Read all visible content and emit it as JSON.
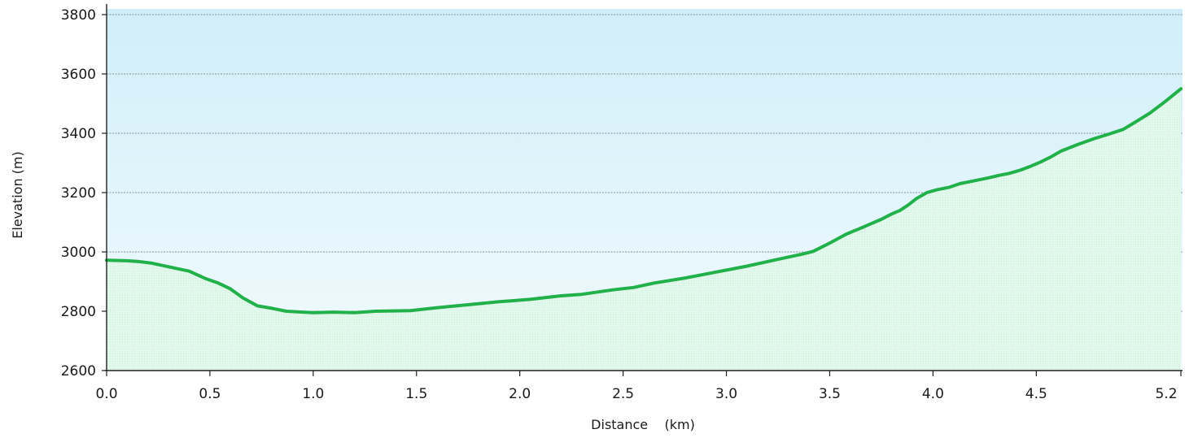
{
  "chart_data": {
    "type": "area",
    "xlabel": "Distance    (km)",
    "ylabel": "Elevation (m)",
    "xlim": [
      0,
      5.2
    ],
    "ylim": [
      2600,
      3800
    ],
    "x_ticks": [
      0.0,
      0.5,
      1.0,
      1.5,
      2.0,
      2.5,
      3.0,
      3.5,
      4.0,
      4.5,
      5.2
    ],
    "x_tick_labels": [
      "0.0",
      "0.5",
      "1.0",
      "1.5",
      "2.0",
      "2.5",
      "3.0",
      "3.5",
      "4.0",
      "4.5",
      "5.2"
    ],
    "y_ticks": [
      2600,
      2800,
      3000,
      3200,
      3400,
      3600,
      3800
    ],
    "y_tick_labels": [
      "2600",
      "2800",
      "3000",
      "3200",
      "3400",
      "3600",
      "3800"
    ],
    "grid": "horizontal dotted",
    "colors": {
      "line": "#22b04b",
      "fill": "#d8f5e4",
      "sky_top": "#d0eef9",
      "sky_bottom": "#f2fbfd"
    },
    "series": [
      {
        "x": [
          0.0,
          0.1,
          0.15,
          0.22,
          0.3,
          0.4,
          0.48,
          0.54,
          0.6,
          0.66,
          0.73,
          0.8,
          0.87,
          0.95,
          1.0,
          1.1,
          1.2,
          1.3,
          1.47,
          1.6,
          1.75,
          1.9,
          2.05,
          2.2,
          2.3,
          2.45,
          2.55,
          2.65,
          2.8,
          2.95,
          3.1,
          3.25,
          3.37,
          3.42,
          3.5,
          3.58,
          3.65,
          3.7,
          3.75,
          3.8,
          3.84,
          3.88,
          3.92,
          3.97,
          4.02,
          4.08,
          4.13,
          4.2,
          4.27,
          4.32,
          4.37,
          4.42,
          4.47,
          4.52,
          4.57,
          4.62,
          4.7,
          4.78,
          4.85,
          4.92,
          4.98,
          5.05,
          5.12,
          5.2
        ],
        "y": [
          2972,
          2970,
          2968,
          2962,
          2950,
          2935,
          2910,
          2895,
          2875,
          2845,
          2818,
          2810,
          2800,
          2797,
          2795,
          2797,
          2795,
          2800,
          2802,
          2812,
          2822,
          2832,
          2840,
          2852,
          2857,
          2872,
          2880,
          2895,
          2912,
          2932,
          2952,
          2975,
          2993,
          3002,
          3030,
          3060,
          3080,
          3095,
          3110,
          3128,
          3140,
          3158,
          3180,
          3200,
          3210,
          3218,
          3230,
          3240,
          3250,
          3258,
          3265,
          3275,
          3288,
          3303,
          3320,
          3340,
          3362,
          3382,
          3397,
          3413,
          3438,
          3468,
          3505,
          3550
        ]
      }
    ]
  }
}
